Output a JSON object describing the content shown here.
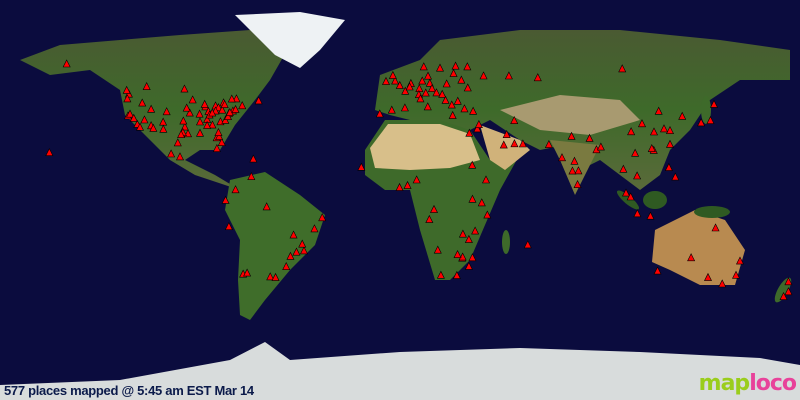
{
  "caption": "577 places mapped @ 5:45 am EST Mar 14",
  "logo": {
    "part1": "map",
    "part2": "loco"
  },
  "colors": {
    "ocean": "#0b0c3e",
    "marker": "#ff0000",
    "logo_map": "#9acd1c",
    "logo_loco": "#e8429a"
  },
  "marker_icon": "red-triangle",
  "markers": [
    [
      -122,
      47.6
    ],
    [
      -122.7,
      45.5
    ],
    [
      -122.4,
      37.8
    ],
    [
      -118.2,
      34
    ],
    [
      -117,
      32.7
    ],
    [
      -115,
      36
    ],
    [
      -112,
      33.4
    ],
    [
      -112,
      40.8
    ],
    [
      -105,
      39.7
    ],
    [
      -106.6,
      35
    ],
    [
      -96.8,
      32.8
    ],
    [
      -95.4,
      29.8
    ],
    [
      -97.7,
      30.3
    ],
    [
      -98.5,
      29.4
    ],
    [
      -97.5,
      35.5
    ],
    [
      -94.6,
      39.1
    ],
    [
      -90.2,
      38.6
    ],
    [
      -87.6,
      41.9
    ],
    [
      -93.3,
      45
    ],
    [
      -83,
      42.3
    ],
    [
      -81.7,
      41.5
    ],
    [
      -83,
      40
    ],
    [
      -86.2,
      39.8
    ],
    [
      -86.8,
      36.2
    ],
    [
      -84.4,
      33.7
    ],
    [
      -80.2,
      25.8
    ],
    [
      -82.5,
      28
    ],
    [
      -81.4,
      28.5
    ],
    [
      -80.8,
      35.2
    ],
    [
      -78.6,
      35.8
    ],
    [
      -77,
      38.9
    ],
    [
      -75.2,
      40
    ],
    [
      -74,
      40.7
    ],
    [
      -71,
      42.4
    ],
    [
      -80,
      40.4
    ],
    [
      -79.4,
      43.7
    ],
    [
      -73.6,
      45.5
    ],
    [
      -75.7,
      45.4
    ],
    [
      -123,
      49.3
    ],
    [
      -114,
      51
    ],
    [
      -97,
      49.9
    ],
    [
      -90,
      30
    ],
    [
      -90,
      35.1
    ],
    [
      -85.7,
      38.2
    ],
    [
      -84.5,
      39.1
    ],
    [
      -87.9,
      43
    ],
    [
      -96,
      41.3
    ],
    [
      -116,
      43.6
    ],
    [
      -121.5,
      38.6
    ],
    [
      -119.8,
      36.7
    ],
    [
      -111,
      32.2
    ],
    [
      -106.5,
      31.8
    ],
    [
      -81.7,
      30.3
    ],
    [
      -86.8,
      33.5
    ],
    [
      -77.4,
      37.5
    ],
    [
      -76.6,
      39.3
    ],
    [
      -78.9,
      42.9
    ],
    [
      -63.6,
      44.6
    ],
    [
      -150,
      61.2
    ],
    [
      -157.8,
      21.3
    ],
    [
      -99,
      19.4
    ],
    [
      -103,
      20.7
    ],
    [
      -100,
      25.7
    ],
    [
      -82.4,
      23.1
    ],
    [
      -66,
      18.4
    ],
    [
      -74,
      4.6
    ],
    [
      -66.9,
      10.5
    ],
    [
      -77,
      -12
    ],
    [
      -78.5,
      -0.2
    ],
    [
      -70.6,
      -33.4
    ],
    [
      -58.4,
      -34.6
    ],
    [
      -46.6,
      -23.5
    ],
    [
      -43.2,
      -22.9
    ],
    [
      -47.9,
      -15.8
    ],
    [
      -35,
      -8
    ],
    [
      -44,
      -19.9
    ],
    [
      -49.3,
      -25.4
    ],
    [
      -51.2,
      -30
    ],
    [
      -60,
      -3.1
    ],
    [
      -56,
      -34.9
    ],
    [
      -68.8,
      -32.9
    ],
    [
      -38.5,
      -13
    ],
    [
      -0.1,
      51.5
    ],
    [
      -6.3,
      53.3
    ],
    [
      2.35,
      48.9
    ],
    [
      -3.7,
      40.4
    ],
    [
      2.2,
      41.4
    ],
    [
      -9.1,
      38.7
    ],
    [
      4.9,
      52.4
    ],
    [
      4.35,
      50.85
    ],
    [
      13.4,
      52.5
    ],
    [
      11.6,
      48.1
    ],
    [
      8.7,
      50.1
    ],
    [
      10,
      53.5
    ],
    [
      12.6,
      55.7
    ],
    [
      10.7,
      59.9
    ],
    [
      18,
      59.3
    ],
    [
      25,
      60.2
    ],
    [
      21,
      52.2
    ],
    [
      14.4,
      50.1
    ],
    [
      16.4,
      48.2
    ],
    [
      19,
      47.5
    ],
    [
      8.5,
      47.4
    ],
    [
      12.5,
      41.9
    ],
    [
      9.2,
      45.5
    ],
    [
      23.7,
      38
    ],
    [
      29,
      41
    ],
    [
      26,
      44.4
    ],
    [
      30.5,
      50.4
    ],
    [
      37.6,
      55.8
    ],
    [
      30.3,
      59.9
    ],
    [
      24.1,
      56.9
    ],
    [
      -2.2,
      53.5
    ],
    [
      -3.2,
      56
    ],
    [
      20.5,
      44.8
    ],
    [
      23.3,
      42.7
    ],
    [
      32.9,
      39.9
    ],
    [
      27.6,
      53.9
    ],
    [
      49,
      55.8
    ],
    [
      62,
      55
    ],
    [
      100,
      59
    ],
    [
      34.8,
      32
    ],
    [
      35.5,
      33.9
    ],
    [
      31.2,
      30
    ],
    [
      46.7,
      24.7
    ],
    [
      55.3,
      25.2
    ],
    [
      51.5,
      25.3
    ],
    [
      48,
      29.4
    ],
    [
      51.4,
      35.7
    ],
    [
      3.4,
      6.5
    ],
    [
      -0.2,
      5.6
    ],
    [
      7.5,
      9
    ],
    [
      -17.4,
      14.7
    ],
    [
      36.8,
      -1.3
    ],
    [
      32.6,
      0.3
    ],
    [
      38.7,
      9
    ],
    [
      39.3,
      -6.8
    ],
    [
      28.3,
      -15.4
    ],
    [
      31,
      -17.8
    ],
    [
      28,
      -26.2
    ],
    [
      28.2,
      -25.7
    ],
    [
      31,
      -29.9
    ],
    [
      18.4,
      -33.9
    ],
    [
      32.6,
      -26
    ],
    [
      17,
      -22.6
    ],
    [
      25.9,
      -24.6
    ],
    [
      33.8,
      -14
    ],
    [
      15.3,
      -4.3
    ],
    [
      13.2,
      -8.8
    ],
    [
      57.5,
      -20.2
    ],
    [
      32.5,
      15.6
    ],
    [
      25.6,
      -34
    ],
    [
      72.9,
      19
    ],
    [
      77.2,
      28.6
    ],
    [
      77.6,
      13
    ],
    [
      80.3,
      13.1
    ],
    [
      78.5,
      17.4
    ],
    [
      88.4,
      22.6
    ],
    [
      67,
      24.9
    ],
    [
      79.9,
      6.9
    ],
    [
      90.4,
      23.8
    ],
    [
      85.3,
      27.7
    ],
    [
      100.5,
      13.8
    ],
    [
      101.7,
      3.1
    ],
    [
      103.8,
      1.35
    ],
    [
      106.8,
      -6.2
    ],
    [
      121,
      14.6
    ],
    [
      114.2,
      22.3
    ],
    [
      121.5,
      31.2
    ],
    [
      116.4,
      39.9
    ],
    [
      127,
      37.6
    ],
    [
      139.7,
      35.7
    ],
    [
      135.5,
      34.7
    ],
    [
      121.5,
      25
    ],
    [
      113.3,
      23.1
    ],
    [
      104,
      30.7
    ],
    [
      114.3,
      30.6
    ],
    [
      105.8,
      21
    ],
    [
      106.7,
      10.8
    ],
    [
      141.3,
      43
    ],
    [
      108.9,
      34.3
    ],
    [
      118.8,
      32
    ],
    [
      112.7,
      -7.3
    ],
    [
      123.9,
      10.3
    ],
    [
      151.2,
      -33.9
    ],
    [
      145,
      -37.8
    ],
    [
      153,
      -27.5
    ],
    [
      115.9,
      -32
    ],
    [
      138.6,
      -34.9
    ],
    [
      174.8,
      -36.8
    ],
    [
      174.8,
      -41.3
    ],
    [
      172.6,
      -43.5
    ],
    [
      131,
      -26
    ],
    [
      142,
      -12.6
    ]
  ]
}
